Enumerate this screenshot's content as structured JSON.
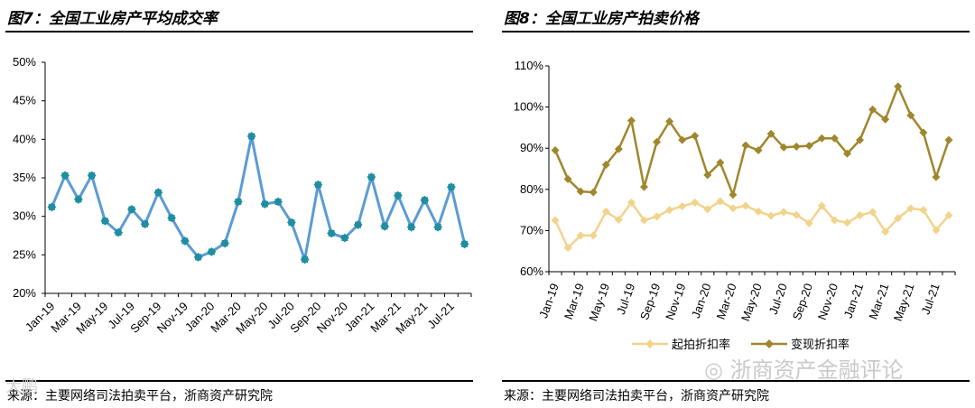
{
  "left": {
    "title": "图7：全国工业房产平均成交率",
    "source": "来源：主要网络司法拍卖平台，浙商资产研究院",
    "chart_data": {
      "type": "line",
      "title": "全国工业房产平均成交率",
      "categories": [
        "Jan-19",
        "Feb-19",
        "Mar-19",
        "Apr-19",
        "May-19",
        "Jun-19",
        "Jul-19",
        "Aug-19",
        "Sep-19",
        "Oct-19",
        "Nov-19",
        "Dec-19",
        "Jan-20",
        "Feb-20",
        "Mar-20",
        "Apr-20",
        "May-20",
        "Jun-20",
        "Jul-20",
        "Aug-20",
        "Sep-20",
        "Oct-20",
        "Nov-20",
        "Dec-20",
        "Jan-21",
        "Feb-21",
        "Mar-21",
        "Apr-21",
        "May-21",
        "Jun-21",
        "Jul-21",
        "Aug-21"
      ],
      "tick_labels": [
        "Jan-19",
        "Mar-19",
        "May-19",
        "Jul-19",
        "Sep-19",
        "Nov-19",
        "Jan-20",
        "Mar-20",
        "May-20",
        "Jul-20",
        "Sep-20",
        "Nov-20",
        "Jan-21",
        "Mar-21",
        "May-21",
        "Jul-21"
      ],
      "series": [
        {
          "name": "平均成交率",
          "color": "#5b9bd5",
          "marker_color": "#1f8ea0",
          "values": [
            31.2,
            35.3,
            32.2,
            35.3,
            29.4,
            27.9,
            30.9,
            29.0,
            33.1,
            29.8,
            26.8,
            24.7,
            25.4,
            26.5,
            31.9,
            40.4,
            31.6,
            31.9,
            29.2,
            24.4,
            34.1,
            27.8,
            27.2,
            28.9,
            35.1,
            28.7,
            32.7,
            28.6,
            32.1,
            28.6,
            33.8,
            26.4
          ]
        }
      ],
      "y_ticks": [
        "50%",
        "45%",
        "40%",
        "35%",
        "30%",
        "25%",
        "20%"
      ],
      "ylim": [
        20,
        50
      ],
      "xlabel": "",
      "ylabel": "",
      "legend": "none"
    }
  },
  "right": {
    "title": "图8：全国工业房产拍卖价格",
    "source": "来源：主要网络司法拍卖平台，浙商资产研究院",
    "chart_data": {
      "type": "line",
      "title": "全国工业房产拍卖价格",
      "categories": [
        "Jan-19",
        "Feb-19",
        "Mar-19",
        "Apr-19",
        "May-19",
        "Jun-19",
        "Jul-19",
        "Aug-19",
        "Sep-19",
        "Oct-19",
        "Nov-19",
        "Dec-19",
        "Jan-20",
        "Feb-20",
        "Mar-20",
        "Apr-20",
        "May-20",
        "Jun-20",
        "Jul-20",
        "Aug-20",
        "Sep-20",
        "Oct-20",
        "Nov-20",
        "Dec-20",
        "Jan-21",
        "Feb-21",
        "Mar-21",
        "Apr-21",
        "May-21",
        "Jun-21",
        "Jul-21",
        "Aug-21"
      ],
      "tick_labels": [
        "Jan-19",
        "Mar-19",
        "May-19",
        "Jul-19",
        "Sep-19",
        "Nov-19",
        "Jan-20",
        "Mar-20",
        "May-20",
        "Jul-20",
        "Sep-20",
        "Nov-20",
        "Jan-21",
        "Mar-21",
        "May-21",
        "Jul-21"
      ],
      "series": [
        {
          "name": "起拍折扣率",
          "color": "#f2d38c",
          "marker": "diamond",
          "values": [
            72.5,
            65.8,
            68.8,
            68.8,
            74.6,
            72.6,
            76.8,
            72.5,
            73.4,
            75.0,
            75.9,
            76.8,
            75.2,
            77.1,
            75.4,
            76.0,
            74.6,
            73.6,
            74.5,
            73.8,
            71.8,
            76.0,
            72.5,
            71.9,
            73.7,
            74.5,
            69.7,
            73.0,
            75.4,
            75.0,
            70.1,
            73.7
          ]
        },
        {
          "name": "变现折扣率",
          "color": "#a0862c",
          "marker": "diamond",
          "values": [
            89.5,
            82.5,
            79.5,
            79.3,
            86.0,
            89.8,
            96.7,
            80.6,
            91.5,
            96.5,
            92.0,
            93.0,
            83.5,
            86.5,
            78.7,
            90.7,
            89.5,
            93.5,
            90.2,
            90.4,
            90.6,
            92.4,
            92.4,
            88.7,
            92.0,
            99.4,
            97.0,
            105.0,
            98.0,
            93.8,
            83.0,
            92.0
          ]
        }
      ],
      "y_ticks": [
        "110%",
        "100%",
        "90%",
        "80%",
        "70%",
        "60%"
      ],
      "ylim": [
        60,
        110
      ],
      "xlabel": "",
      "ylabel": "",
      "legend": "bottom"
    }
  },
  "watermark": "浙商资产金融评论",
  "watermark_small": "大鹏"
}
